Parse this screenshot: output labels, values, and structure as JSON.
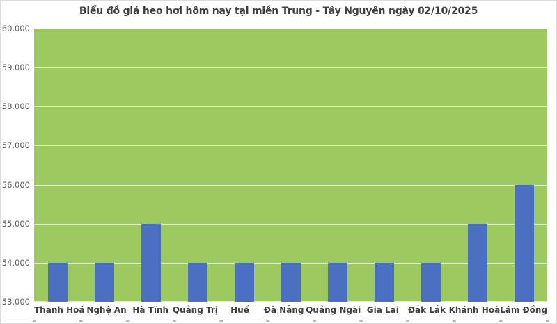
{
  "page": {
    "title": "Biểu đồ giá heo hơi hôm nay tại miền Trung - Tây Nguyên ngày 02/10/2025"
  },
  "chart_data": {
    "type": "bar",
    "title": "Biểu đồ giá heo hơi hôm nay tại miền Trung - Tây Nguyên ngày 02/10/2025",
    "categories": [
      "Thanh Hoá",
      "Nghệ An",
      "Hà Tĩnh",
      "Quảng Trị",
      "Huế",
      "Đà Nẵng",
      "Quảng Ngãi",
      "Gia Lai",
      "Đắk Lắk",
      "Khánh Hoà",
      "Lâm Đồng"
    ],
    "values": [
      54000,
      54000,
      55000,
      54000,
      54000,
      54000,
      54000,
      54000,
      54000,
      55000,
      56000
    ],
    "y_tick_labels": [
      "60.000",
      "59.000",
      "58.000",
      "57.000",
      "56.000",
      "55.000",
      "54.000",
      "53.000"
    ],
    "ylim": [
      53000,
      60000
    ],
    "y_step": 1000,
    "xlabel": "",
    "ylabel": "",
    "grid": true,
    "legend": false,
    "colors": {
      "bar": "#4a71c1",
      "plot_background": "#9cca60",
      "gridline": "rgba(255,255,255,0.7)",
      "title_text": "#3f3f3f",
      "y_axis_text": "#595959",
      "category_text": "#404040",
      "frame_border": "#dcdcdc"
    }
  }
}
